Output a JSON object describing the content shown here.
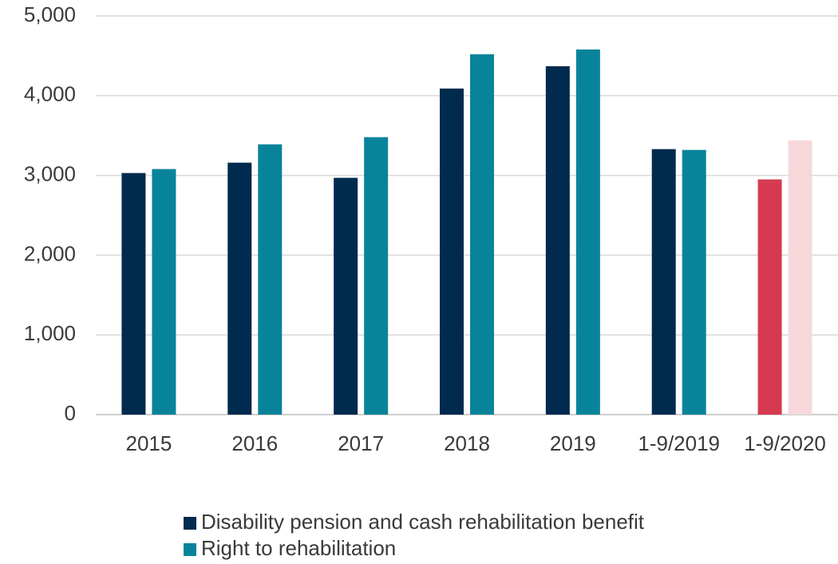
{
  "chart_data": {
    "type": "bar",
    "categories": [
      "2015",
      "2016",
      "2017",
      "2018",
      "2019",
      "1-9/2019",
      "1-9/2020"
    ],
    "series": [
      {
        "name": "Disability pension and cash rehabilitation benefit",
        "color": "#002a4e",
        "colors": [
          "#002a4e",
          "#002a4e",
          "#002a4e",
          "#002a4e",
          "#002a4e",
          "#002a4e",
          "#d63a50"
        ],
        "values": [
          3030,
          3160,
          2970,
          4090,
          4370,
          3330,
          2950
        ]
      },
      {
        "name": "Right to rehabilitation",
        "color": "#08849a",
        "colors": [
          "#08849a",
          "#08849a",
          "#08849a",
          "#08849a",
          "#08849a",
          "#08849a",
          "#f8d7db"
        ],
        "values": [
          3080,
          3390,
          3480,
          4520,
          4580,
          3320,
          3440
        ]
      }
    ],
    "ylim": [
      0,
      5000
    ],
    "yticks": [
      0,
      {
        "value": 1000,
        "label": "1,000"
      },
      {
        "value": 2000,
        "label": "2,000"
      },
      {
        "value": 3000,
        "label": "3,000"
      },
      {
        "value": 4000,
        "label": "4,000"
      },
      {
        "value": 5000,
        "label": "5,000"
      }
    ],
    "grid": true,
    "legend": "bottom"
  }
}
